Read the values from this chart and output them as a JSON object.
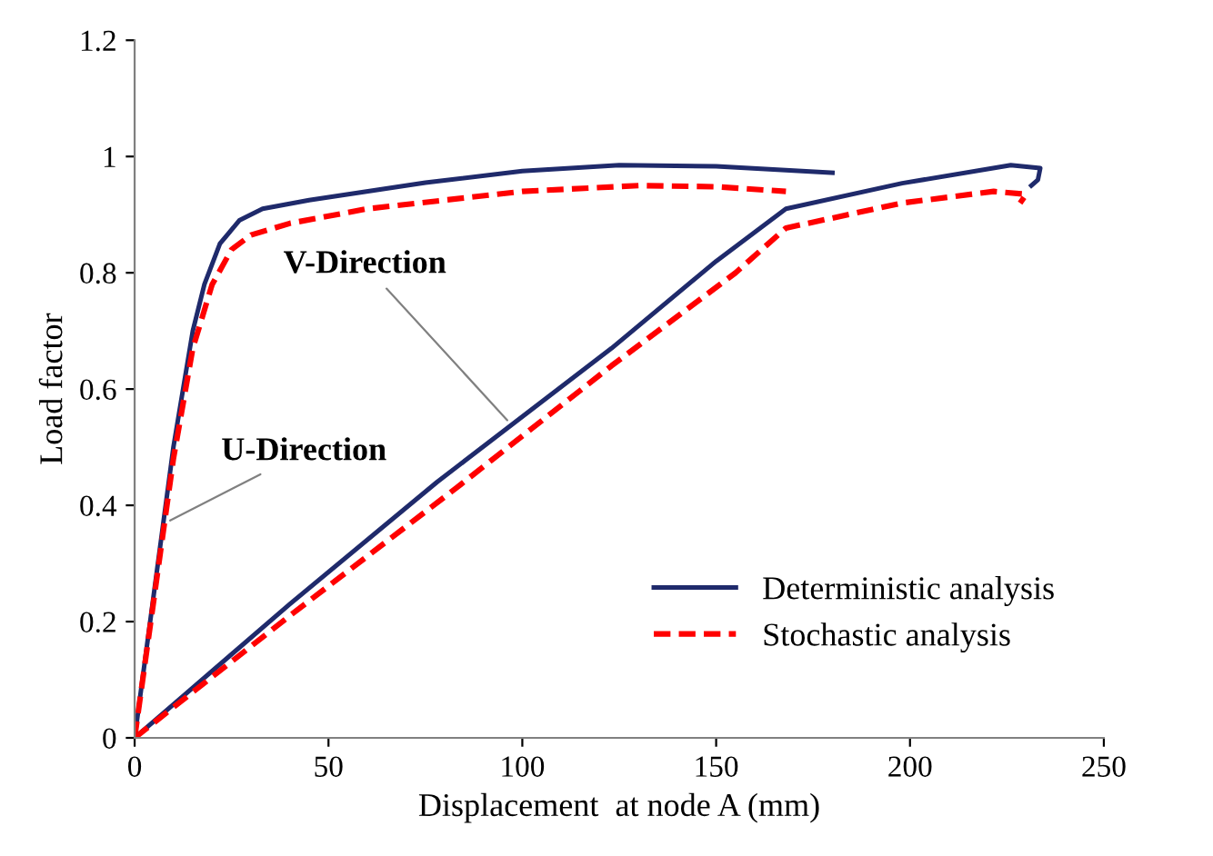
{
  "chart_data": {
    "type": "line",
    "xlabel": "Displacement  at node A (mm)",
    "ylabel": "Load factor",
    "xlim": [
      0,
      250
    ],
    "xticks": [
      0,
      50,
      100,
      150,
      200,
      250
    ],
    "ylim": [
      0,
      1.2
    ],
    "yticks": [
      0,
      0.2,
      0.4,
      0.6,
      0.8,
      1,
      1.2
    ],
    "grid": false,
    "legend": "bottom right",
    "marker": "none",
    "series": [
      {
        "name": "Deterministic analysis",
        "color": "#1f2a6b",
        "line_style": "solid",
        "x": [
          0,
          5,
          10,
          15,
          18,
          22,
          27,
          33,
          45,
          75,
          100,
          125,
          150,
          180
        ],
        "values": [
          0,
          0.25,
          0.5,
          0.7,
          0.78,
          0.85,
          0.89,
          0.91,
          0.925,
          0.955,
          0.975,
          0.985,
          0.983,
          0.972
        ]
      },
      {
        "name": "Stochastic analysis",
        "color": "#ff0000",
        "line_style": "dashed",
        "x": [
          0,
          5,
          10,
          15,
          20,
          25,
          30,
          40,
          60,
          100,
          130,
          150,
          168
        ],
        "values": [
          0,
          0.24,
          0.48,
          0.67,
          0.78,
          0.84,
          0.865,
          0.885,
          0.91,
          0.94,
          0.95,
          0.948,
          0.94
        ]
      },
      {
        "color": "#1f2a6b",
        "line_style": "solid",
        "x": [
          0,
          40,
          78,
          123,
          150,
          168,
          198,
          226,
          233.6,
          233,
          231.3
        ],
        "values": [
          0,
          0.23,
          0.44,
          0.67,
          0.82,
          0.91,
          0.954,
          0.985,
          0.98,
          0.96,
          0.95
        ]
      },
      {
        "color": "#ff0000",
        "line_style": "dashed",
        "x": [
          0,
          40,
          83,
          123,
          155,
          168,
          198,
          221.6,
          230,
          228.4
        ],
        "values": [
          0,
          0.21,
          0.43,
          0.64,
          0.8,
          0.877,
          0.92,
          0.94,
          0.935,
          0.92
        ]
      }
    ],
    "annotations": [
      {
        "text": "U-Direction",
        "x": 8,
        "y": 0.37
      },
      {
        "text": "V-Direction",
        "x": 97,
        "y": 0.54
      }
    ]
  }
}
